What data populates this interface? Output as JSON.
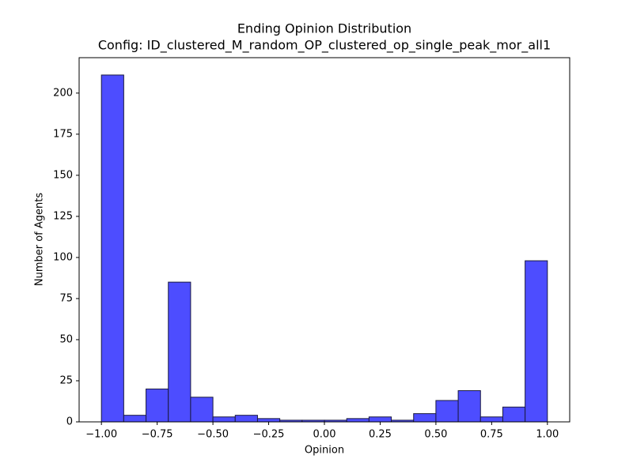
{
  "chart_data": {
    "type": "histogram",
    "title": "Ending Opinion Distribution",
    "subtitle": "Config: ID_clustered_M_random_OP_clustered_op_single_peak_mor_all1",
    "xlabel": "Opinion",
    "ylabel": "Number of Agents",
    "bins": [
      -1.0,
      -0.9,
      -0.8,
      -0.7,
      -0.6,
      -0.5,
      -0.4,
      -0.3,
      -0.2,
      -0.1,
      0.0,
      0.1,
      0.2,
      0.3,
      0.4,
      0.5,
      0.6,
      0.7,
      0.8,
      0.9,
      1.0
    ],
    "values": [
      211,
      4,
      20,
      85,
      15,
      3,
      4,
      2,
      1,
      1,
      1,
      2,
      3,
      1,
      5,
      13,
      19,
      3,
      9,
      98
    ],
    "color": "#4d4dff",
    "edgecolor": "#1a1a40",
    "xlim": [
      -1.1,
      1.1
    ],
    "xticks": [
      {
        "value": -1.0,
        "label": "−1.00"
      },
      {
        "value": -0.75,
        "label": "−0.75"
      },
      {
        "value": -0.5,
        "label": "−0.50"
      },
      {
        "value": -0.25,
        "label": "−0.25"
      },
      {
        "value": 0,
        "label": "0.00"
      },
      {
        "value": 0.25,
        "label": "0.25"
      },
      {
        "value": 0.5,
        "label": "0.50"
      },
      {
        "value": 0.75,
        "label": "0.75"
      },
      {
        "value": 1.0,
        "label": "1.00"
      }
    ],
    "ylim": [
      0,
      221.55
    ],
    "yticks": [
      0,
      25,
      50,
      75,
      100,
      125,
      150,
      175,
      200
    ]
  }
}
